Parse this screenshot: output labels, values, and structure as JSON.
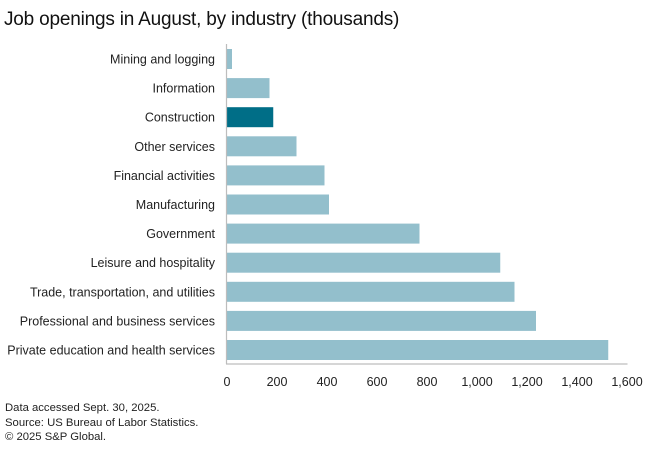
{
  "chart_data": {
    "type": "bar",
    "orientation": "horizontal",
    "title": "Job openings in August, by industry (thousands)",
    "categories": [
      "Mining and logging",
      "Information",
      "Construction",
      "Other services",
      "Financial activities",
      "Manufacturing",
      "Government",
      "Leisure and hospitality",
      "Trade, transportation, and utilities",
      "Professional and business services",
      "Private education and health services"
    ],
    "values": [
      20,
      170,
      185,
      278,
      390,
      408,
      770,
      1093,
      1150,
      1236,
      1525
    ],
    "highlight": "Construction",
    "xlabel": "",
    "ylabel": "",
    "xlim": [
      0,
      1600
    ],
    "xticks": [
      0,
      200,
      400,
      600,
      800,
      1000,
      1200,
      1400,
      1600
    ],
    "xtick_labels": [
      "0",
      "200",
      "400",
      "600",
      "800",
      "1,000",
      "1,200",
      "1,400",
      "1,600"
    ],
    "grid": false,
    "colors": {
      "bar": "#93bfcc",
      "highlight": "#006e87",
      "axis": "#bdbdbd"
    }
  },
  "footer": {
    "accessed": "Data accessed Sept. 30, 2025.",
    "source": "Source: US Bureau of Labor Statistics.",
    "copyright": "© 2025 S&P Global."
  }
}
